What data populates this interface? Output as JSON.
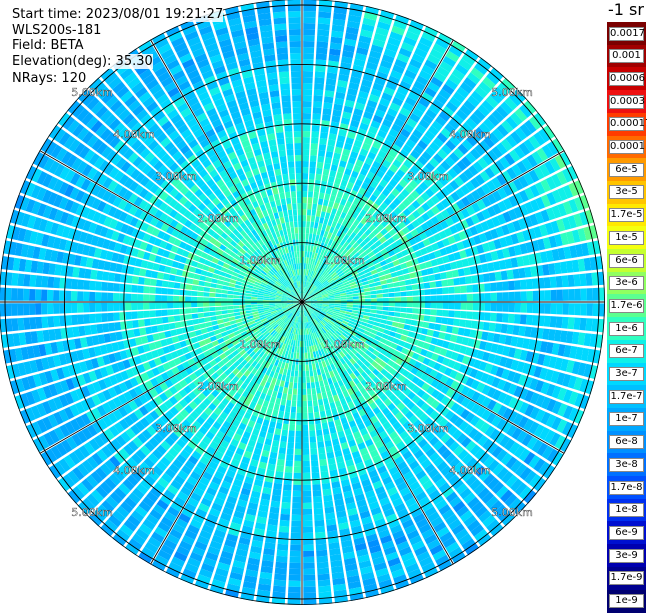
{
  "info": {
    "start_time": "Start time: 2023/08/01 19:21:27",
    "instrument": "WLS200s-181",
    "field": "Field: BETA",
    "elevation": "Elevation(deg): 35.30",
    "nrays": "NRays: 120"
  },
  "colorbar": {
    "title": "-1 sr",
    "labels": [
      "0.0017",
      "0.001",
      "0.0006",
      "0.0003",
      "0.00017",
      "0.0001",
      "6e-5",
      "3e-5",
      "1.7e-5",
      "1e-5",
      "6e-6",
      "3e-6",
      "1.7e-6",
      "1e-6",
      "6e-7",
      "3e-7",
      "1.7e-7",
      "1e-7",
      "6e-8",
      "3e-8",
      "1.7e-8",
      "1e-8",
      "6e-9",
      "3e-9",
      "1.7e-9",
      "1e-9"
    ],
    "colors": [
      "#7a0000",
      "#a00000",
      "#c80000",
      "#ee1010",
      "#ff3c00",
      "#ff6a00",
      "#ff9a00",
      "#ffc400",
      "#ffe800",
      "#f4ff10",
      "#c4ff30",
      "#90ff60",
      "#5cff90",
      "#30ffc0",
      "#10f0e8",
      "#00d8ff",
      "#00c0ff",
      "#00a8ff",
      "#0090ff",
      "#0070ff",
      "#0050ff",
      "#0030f0",
      "#0010d0",
      "#0000b0",
      "#000090",
      "#000070"
    ]
  },
  "rings": {
    "labels": [
      "1.00km",
      "2.00km",
      "3.00km",
      "4.00km",
      "5.00km"
    ]
  }
}
